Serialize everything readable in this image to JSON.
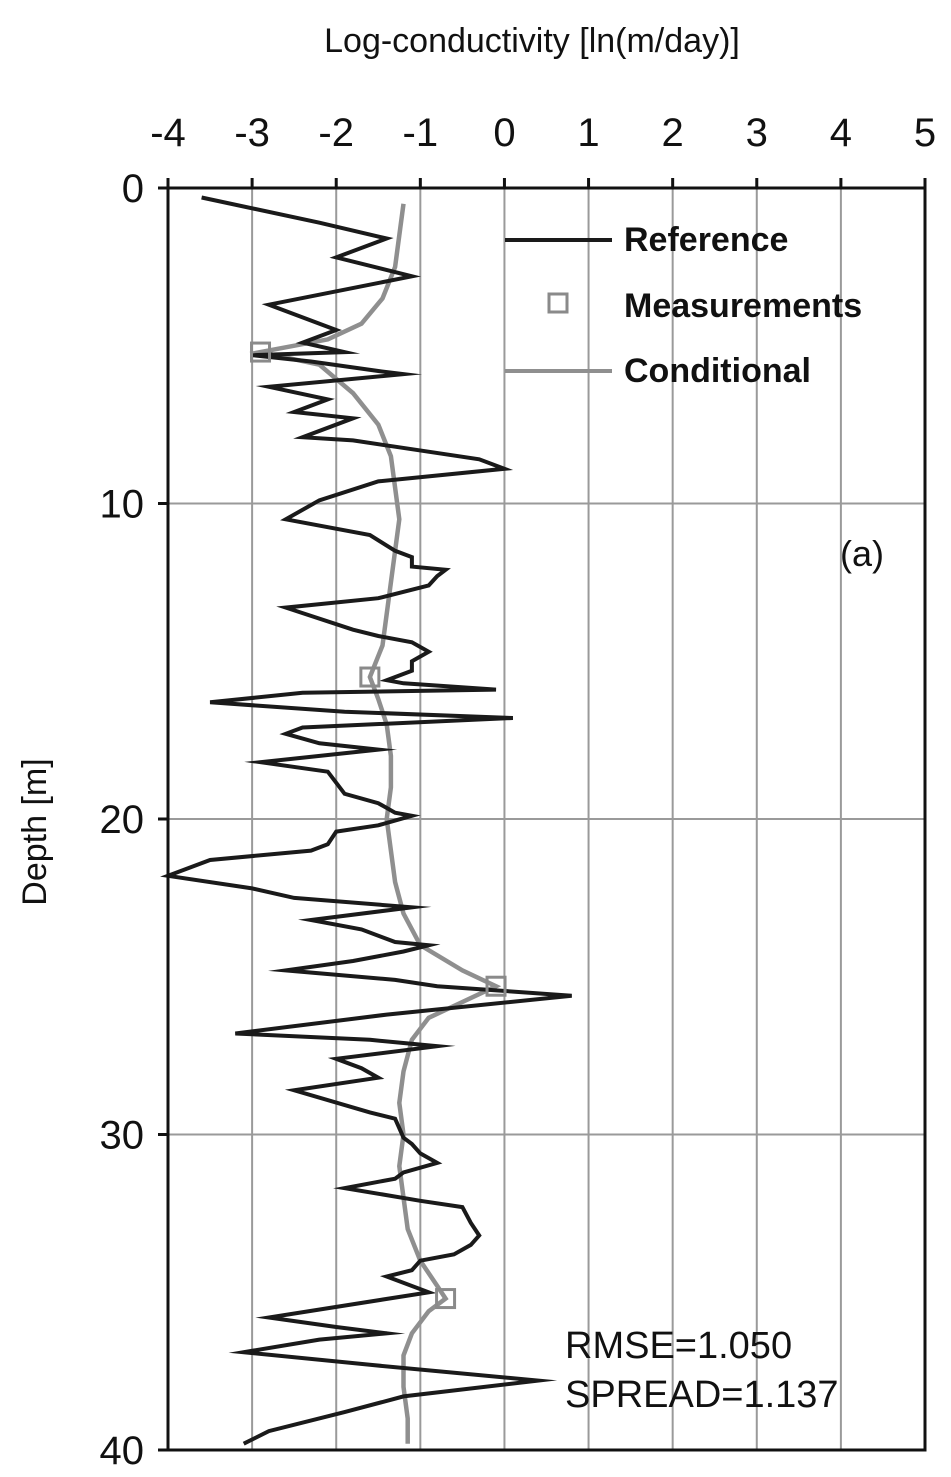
{
  "chart_data": {
    "type": "line",
    "xlabel": "Log-conductivity [ln(m/day)]",
    "ylabel": "Depth [m]",
    "xlim": [
      -4,
      5
    ],
    "ylim": [
      0,
      40
    ],
    "y_inverted": true,
    "x_axis_position": "top",
    "x_ticks": [
      -4,
      -3,
      -2,
      -1,
      0,
      1,
      2,
      3,
      4,
      5
    ],
    "y_ticks": [
      0,
      10,
      20,
      30,
      40
    ],
    "x_tick_labels": [
      "-4",
      "-3",
      "-2",
      "-1",
      "0",
      "1",
      "2",
      "3",
      "4",
      "5"
    ],
    "y_tick_labels": [
      "0",
      "10",
      "20",
      "30",
      "40"
    ],
    "grid": true,
    "legend_position": "top-right",
    "panel_label": "(a)",
    "annotations": [
      "RMSE=1.050",
      "SPREAD=1.137"
    ],
    "series": [
      {
        "name": "Reference",
        "type": "line",
        "color": "#1a1a1a",
        "points": [
          [
            -3.6,
            0.3
          ],
          [
            -2.2,
            1.1
          ],
          [
            -1.4,
            1.6
          ],
          [
            -2.0,
            2.2
          ],
          [
            -1.1,
            2.8
          ],
          [
            -2.8,
            3.7
          ],
          [
            -2.0,
            4.5
          ],
          [
            -2.4,
            4.9
          ],
          [
            -1.9,
            5.2
          ],
          [
            -3.0,
            5.3
          ],
          [
            -2.3,
            5.5
          ],
          [
            -1.5,
            5.8
          ],
          [
            -1.2,
            5.9
          ],
          [
            -2.8,
            6.3
          ],
          [
            -2.1,
            6.7
          ],
          [
            -2.5,
            7.1
          ],
          [
            -1.8,
            7.3
          ],
          [
            -2.4,
            7.9
          ],
          [
            -1.8,
            8.0
          ],
          [
            -1.3,
            8.2
          ],
          [
            -0.3,
            8.6
          ],
          [
            0.0,
            8.9
          ],
          [
            -1.5,
            9.3
          ],
          [
            -2.2,
            9.9
          ],
          [
            -2.6,
            10.5
          ],
          [
            -1.6,
            11.0
          ],
          [
            -1.3,
            11.5
          ],
          [
            -1.1,
            11.7
          ],
          [
            -1.1,
            12.0
          ],
          [
            -0.7,
            12.1
          ],
          [
            -0.8,
            12.3
          ],
          [
            -0.9,
            12.6
          ],
          [
            -1.5,
            13.0
          ],
          [
            -2.6,
            13.3
          ],
          [
            -1.8,
            14.0
          ],
          [
            -1.5,
            14.2
          ],
          [
            -1.1,
            14.4
          ],
          [
            -0.9,
            14.7
          ],
          [
            -1.1,
            15.0
          ],
          [
            -1.1,
            15.3
          ],
          [
            -1.4,
            15.6
          ],
          [
            -1.2,
            15.7
          ],
          [
            -0.1,
            15.9
          ],
          [
            -2.4,
            16.0
          ],
          [
            -3.5,
            16.3
          ],
          [
            -1.9,
            16.6
          ],
          [
            0.1,
            16.8
          ],
          [
            -2.4,
            17.1
          ],
          [
            -2.6,
            17.3
          ],
          [
            -2.2,
            17.6
          ],
          [
            -1.5,
            17.8
          ],
          [
            -2.9,
            18.2
          ],
          [
            -2.1,
            18.5
          ],
          [
            -1.9,
            19.2
          ],
          [
            -1.5,
            19.5
          ],
          [
            -1.3,
            19.8
          ],
          [
            -1.1,
            19.9
          ],
          [
            -1.5,
            20.2
          ],
          [
            -2.0,
            20.4
          ],
          [
            -2.1,
            20.8
          ],
          [
            -2.3,
            21.0
          ],
          [
            -3.5,
            21.3
          ],
          [
            -4.0,
            21.8
          ],
          [
            -3.0,
            22.2
          ],
          [
            -2.5,
            22.5
          ],
          [
            -1.1,
            22.8
          ],
          [
            -2.3,
            23.2
          ],
          [
            -1.7,
            23.5
          ],
          [
            -1.3,
            23.9
          ],
          [
            -0.9,
            24.0
          ],
          [
            -1.2,
            24.2
          ],
          [
            -1.8,
            24.5
          ],
          [
            -2.6,
            24.8
          ],
          [
            -1.3,
            25.1
          ],
          [
            -0.8,
            25.3
          ],
          [
            0.8,
            25.6
          ],
          [
            -1.4,
            26.2
          ],
          [
            -3.2,
            26.8
          ],
          [
            -1.6,
            27.0
          ],
          [
            -0.8,
            27.2
          ],
          [
            -2.0,
            27.6
          ],
          [
            -1.7,
            27.9
          ],
          [
            -1.5,
            28.2
          ],
          [
            -2.5,
            28.6
          ],
          [
            -1.6,
            29.3
          ],
          [
            -1.3,
            29.5
          ],
          [
            -1.2,
            30.1
          ],
          [
            -1.1,
            30.3
          ],
          [
            -1.0,
            30.6
          ],
          [
            -0.8,
            30.9
          ],
          [
            -1.2,
            31.2
          ],
          [
            -1.3,
            31.4
          ],
          [
            -1.9,
            31.7
          ],
          [
            -1.0,
            32.1
          ],
          [
            -0.5,
            32.3
          ],
          [
            -0.4,
            32.8
          ],
          [
            -0.3,
            33.2
          ],
          [
            -0.4,
            33.5
          ],
          [
            -0.6,
            33.8
          ],
          [
            -1.0,
            34.0
          ],
          [
            -1.1,
            34.3
          ],
          [
            -1.4,
            34.5
          ],
          [
            -0.9,
            35.0
          ],
          [
            -2.8,
            35.8
          ],
          [
            -2.0,
            36.1
          ],
          [
            -1.4,
            36.3
          ],
          [
            -2.2,
            36.5
          ],
          [
            -3.1,
            36.9
          ],
          [
            -1.6,
            37.3
          ],
          [
            0.4,
            37.8
          ],
          [
            -1.2,
            38.3
          ],
          [
            -1.9,
            38.8
          ],
          [
            -2.8,
            39.4
          ],
          [
            -3.1,
            39.8
          ]
        ]
      },
      {
        "name": "Measurements",
        "type": "scatter",
        "marker": "square",
        "color": "#8a8a8a",
        "points": [
          [
            -2.9,
            5.2
          ],
          [
            -1.6,
            15.5
          ],
          [
            -0.1,
            25.3
          ],
          [
            -0.7,
            35.2
          ]
        ]
      },
      {
        "name": "Conditional",
        "type": "line",
        "color": "#8f8f8f",
        "points": [
          [
            -1.2,
            0.5
          ],
          [
            -1.25,
            1.5
          ],
          [
            -1.3,
            2.5
          ],
          [
            -1.45,
            3.5
          ],
          [
            -1.7,
            4.3
          ],
          [
            -2.1,
            4.8
          ],
          [
            -2.9,
            5.2
          ],
          [
            -2.2,
            5.6
          ],
          [
            -1.8,
            6.5
          ],
          [
            -1.5,
            7.5
          ],
          [
            -1.35,
            8.5
          ],
          [
            -1.3,
            9.5
          ],
          [
            -1.25,
            10.5
          ],
          [
            -1.3,
            11.5
          ],
          [
            -1.35,
            12.5
          ],
          [
            -1.4,
            13.5
          ],
          [
            -1.45,
            14.5
          ],
          [
            -1.6,
            15.5
          ],
          [
            -1.5,
            16.2
          ],
          [
            -1.4,
            17.0
          ],
          [
            -1.35,
            18.0
          ],
          [
            -1.35,
            19.0
          ],
          [
            -1.4,
            20.0
          ],
          [
            -1.35,
            21.0
          ],
          [
            -1.3,
            22.0
          ],
          [
            -1.2,
            23.0
          ],
          [
            -1.0,
            24.0
          ],
          [
            -0.5,
            24.8
          ],
          [
            -0.1,
            25.3
          ],
          [
            -0.5,
            25.8
          ],
          [
            -0.9,
            26.3
          ],
          [
            -1.1,
            27.0
          ],
          [
            -1.2,
            28.0
          ],
          [
            -1.25,
            29.0
          ],
          [
            -1.2,
            30.0
          ],
          [
            -1.25,
            31.0
          ],
          [
            -1.2,
            32.0
          ],
          [
            -1.15,
            33.0
          ],
          [
            -1.0,
            34.0
          ],
          [
            -0.8,
            34.8
          ],
          [
            -0.7,
            35.2
          ],
          [
            -0.9,
            35.6
          ],
          [
            -1.1,
            36.3
          ],
          [
            -1.2,
            37.0
          ],
          [
            -1.2,
            38.0
          ],
          [
            -1.15,
            39.0
          ],
          [
            -1.15,
            39.8
          ]
        ]
      }
    ]
  }
}
